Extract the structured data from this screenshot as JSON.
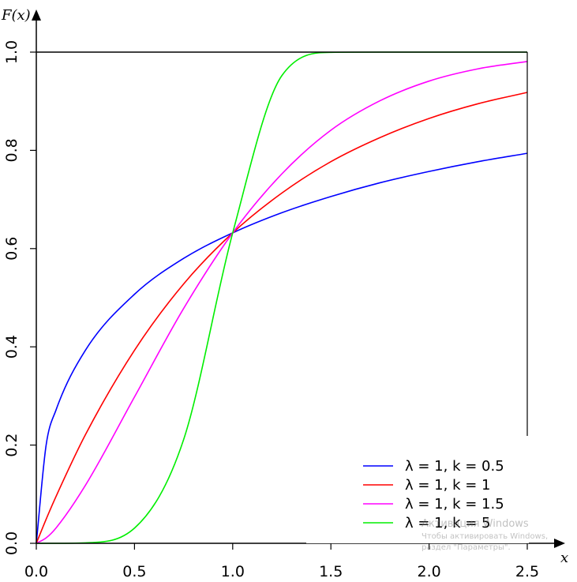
{
  "chart_data": {
    "type": "line",
    "title": "",
    "xlabel": "x",
    "ylabel": "F(x)",
    "xlim": [
      0,
      2.5
    ],
    "ylim": [
      0,
      1.0
    ],
    "x_ticks": [
      "0.0",
      "0.5",
      "1.0",
      "1.5",
      "2.0",
      "2.5"
    ],
    "y_ticks": [
      "0.0",
      "0.2",
      "0.4",
      "0.6",
      "0.8",
      "1.0"
    ],
    "grid": false,
    "legend_position": "bottom-right",
    "reference_line": {
      "y": 1.0
    },
    "x": [
      0.0,
      0.05,
      0.1,
      0.25,
      0.5,
      0.75,
      1.0,
      1.25,
      1.5,
      1.75,
      2.0,
      2.25,
      2.5
    ],
    "series": [
      {
        "name": "λ = 1, k = 0.5",
        "color": "#0000ff",
        "values": [
          0.0,
          0.2,
          0.271,
          0.393,
          0.507,
          0.58,
          0.632,
          0.673,
          0.706,
          0.734,
          0.757,
          0.777,
          0.794
        ]
      },
      {
        "name": "λ = 1, k = 1",
        "color": "#ff0000",
        "values": [
          0.0,
          0.049,
          0.095,
          0.221,
          0.393,
          0.528,
          0.632,
          0.713,
          0.777,
          0.826,
          0.865,
          0.895,
          0.918
        ]
      },
      {
        "name": "λ = 1, k = 1.5",
        "color": "#ff00ff",
        "values": [
          0.0,
          0.011,
          0.031,
          0.118,
          0.298,
          0.478,
          0.632,
          0.752,
          0.841,
          0.901,
          0.941,
          0.966,
          0.981
        ]
      },
      {
        "name": "λ = 1, k = 5",
        "color": "#00ee00",
        "values": [
          0.0,
          0.0,
          0.0,
          0.001,
          0.031,
          0.211,
          0.632,
          0.952,
          0.9995,
          1.0,
          1.0,
          1.0,
          1.0
        ]
      }
    ]
  },
  "watermark": {
    "line1": "Активация Windows",
    "line2": "Чтобы активировать Windows,",
    "line3": "раздел \"Параметры\"."
  }
}
